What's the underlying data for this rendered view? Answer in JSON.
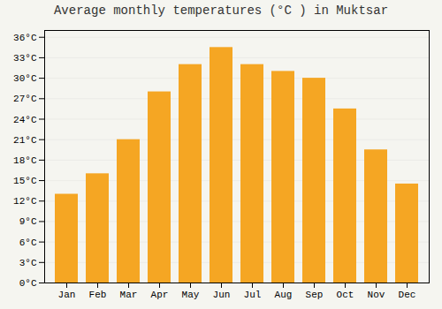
{
  "chart_data": {
    "type": "bar",
    "title": "Average monthly temperatures (°C ) in Muktsar",
    "categories": [
      "Jan",
      "Feb",
      "Mar",
      "Apr",
      "May",
      "Jun",
      "Jul",
      "Aug",
      "Sep",
      "Oct",
      "Nov",
      "Dec"
    ],
    "values": [
      13,
      16,
      21,
      28,
      32,
      34.5,
      32,
      31,
      30,
      25.5,
      19.5,
      14.5
    ],
    "color": "#F5A623",
    "ylim": [
      0,
      37
    ],
    "yticks": [
      {
        "value": 0,
        "label": "0°C"
      },
      {
        "value": 3,
        "label": "3°C"
      },
      {
        "value": 6,
        "label": "6°C"
      },
      {
        "value": 9,
        "label": "9°C"
      },
      {
        "value": 12,
        "label": "12°C"
      },
      {
        "value": 15,
        "label": "15°C"
      },
      {
        "value": 18,
        "label": "18°C"
      },
      {
        "value": 21,
        "label": "21°C"
      },
      {
        "value": 24,
        "label": "24°C"
      },
      {
        "value": 27,
        "label": "27°C"
      },
      {
        "value": 30,
        "label": "30°C"
      },
      {
        "value": 33,
        "label": "33°C"
      },
      {
        "value": 36,
        "label": "36°C"
      }
    ],
    "grid": true
  }
}
